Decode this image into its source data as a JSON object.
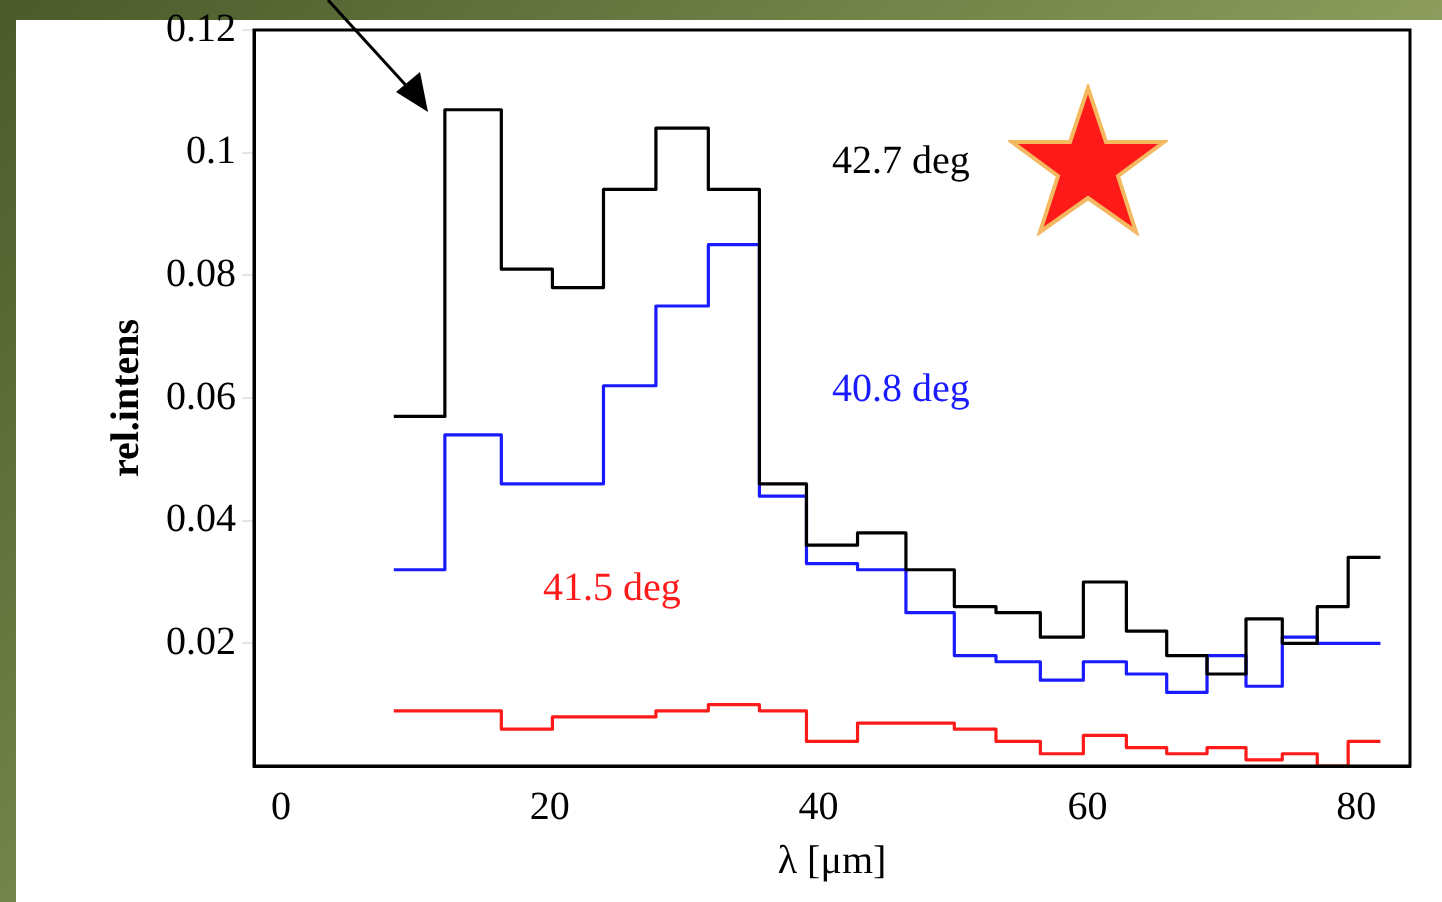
{
  "chart_data": {
    "type": "histogram",
    "xlabel": "λ [μm]",
    "ylabel": "rel.intens",
    "bins": [
      8.4,
      12.2,
      16.4,
      20.2,
      24,
      27.9,
      31.8,
      35.6,
      39.1,
      42.9,
      46.5,
      50.1,
      53.2,
      56.5,
      59.7,
      62.9,
      65.9,
      68.9,
      71.8,
      74.5,
      77.1,
      79.4,
      81.8
    ],
    "series": [
      {
        "name": "42.7 deg",
        "color": "#000000",
        "values": [
          0.057,
          0.107,
          0.081,
          0.078,
          0.094,
          0.104,
          0.094,
          0.046,
          0.036,
          0.038,
          0.032,
          0.026,
          0.025,
          0.021,
          0.03,
          0.022,
          0.018,
          0.015,
          0.024,
          0.02,
          0.026,
          0.034
        ]
      },
      {
        "name": "40.8 deg",
        "color": "#1a1aff",
        "values": [
          0.032,
          0.054,
          0.046,
          0.046,
          0.062,
          0.075,
          0.085,
          0.044,
          0.033,
          0.032,
          0.025,
          0.018,
          0.017,
          0.014,
          0.017,
          0.015,
          0.012,
          0.018,
          0.013,
          0.021,
          0.02,
          0.02
        ]
      },
      {
        "name": "41.5 deg",
        "color": "#ff1a1a",
        "values": [
          0.009,
          0.009,
          0.006,
          0.008,
          0.008,
          0.009,
          0.01,
          0.009,
          0.004,
          0.007,
          0.007,
          0.006,
          0.004,
          0.002,
          0.005,
          0.003,
          0.002,
          0.003,
          0.001,
          0.002,
          0,
          0.004
        ]
      }
    ],
    "xlim": [
      -2,
      84
    ],
    "xticks": [
      0,
      20,
      40,
      60,
      80
    ],
    "ylim": [
      0,
      0.12
    ],
    "yticks": [
      0.02,
      0.04,
      0.06,
      0.08,
      0.1,
      0.12
    ],
    "grid": false,
    "legend": false
  }
}
